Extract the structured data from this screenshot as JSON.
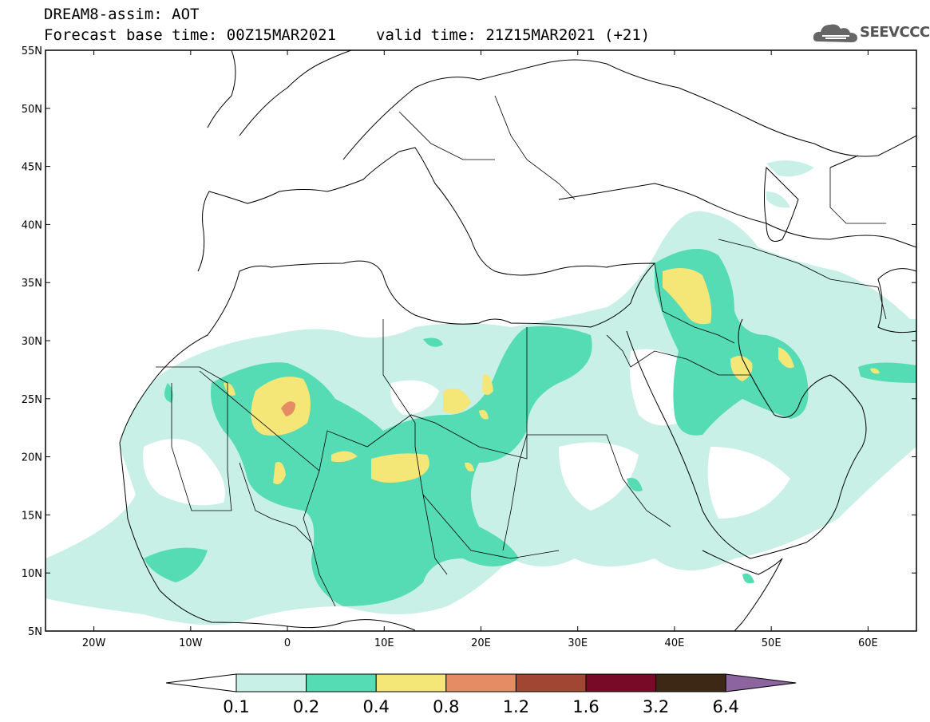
{
  "header": {
    "line1": "DREAM8-assim: AOT",
    "base_time": "Forecast base time: 00Z15MAR2021",
    "valid_time": "valid time: 21Z15MAR2021 (+21)"
  },
  "logo": {
    "text": "SEEVCCC",
    "icon": "cloud-logo-icon"
  },
  "map": {
    "lat_labels": [
      "55N",
      "50N",
      "45N",
      "40N",
      "35N",
      "30N",
      "25N",
      "20N",
      "15N",
      "10N",
      "5N"
    ],
    "lon_labels": [
      "20W",
      "10W",
      "0",
      "10E",
      "20E",
      "30E",
      "40E",
      "50E",
      "60E"
    ],
    "extent": {
      "lon": [
        -25,
        65
      ],
      "lat": [
        5,
        55
      ]
    }
  },
  "colorbar": {
    "labels": [
      "0.1",
      "0.2",
      "0.4",
      "0.8",
      "1.2",
      "1.6",
      "3.2",
      "6.4"
    ],
    "colors": [
      "#ffffff",
      "#c8f0e6",
      "#55dcb4",
      "#f5e678",
      "#e68c64",
      "#a04632",
      "#780a28",
      "#3c2814",
      "#8c64a0"
    ]
  },
  "palette": {
    "aot_01": "#c8f0e6",
    "aot_02": "#55dcb4",
    "aot_04": "#f5e678",
    "aot_08": "#e68c64"
  }
}
